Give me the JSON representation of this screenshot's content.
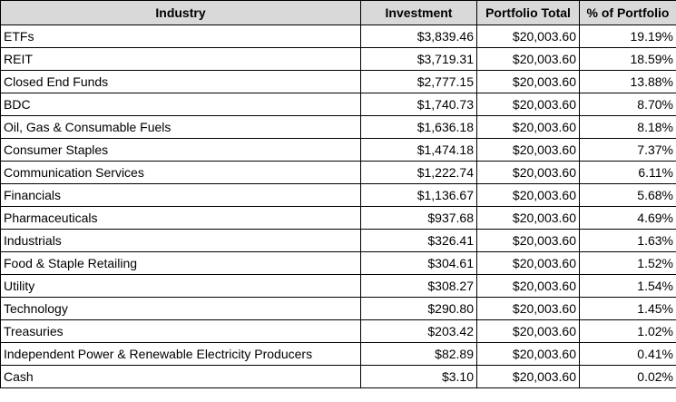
{
  "table": {
    "header": [
      "Industry",
      "Investment",
      "Portfolio Total",
      "% of Portfolio"
    ],
    "rows": [
      [
        "ETFs",
        "$3,839.46",
        "$20,003.60",
        "19.19%"
      ],
      [
        "REIT",
        "$3,719.31",
        "$20,003.60",
        "18.59%"
      ],
      [
        "Closed End Funds",
        "$2,777.15",
        "$20,003.60",
        "13.88%"
      ],
      [
        "BDC",
        "$1,740.73",
        "$20,003.60",
        "8.70%"
      ],
      [
        "Oil, Gas & Consumable Fuels",
        "$1,636.18",
        "$20,003.60",
        "8.18%"
      ],
      [
        "Consumer Staples",
        "$1,474.18",
        "$20,003.60",
        "7.37%"
      ],
      [
        "Communication Services",
        "$1,222.74",
        "$20,003.60",
        "6.11%"
      ],
      [
        "Financials",
        "$1,136.67",
        "$20,003.60",
        "5.68%"
      ],
      [
        "Pharmaceuticals",
        "$937.68",
        "$20,003.60",
        "4.69%"
      ],
      [
        "Industrials",
        "$326.41",
        "$20,003.60",
        "1.63%"
      ],
      [
        "Food & Staple Retailing",
        "$304.61",
        "$20,003.60",
        "1.52%"
      ],
      [
        "Utility",
        "$308.27",
        "$20,003.60",
        "1.54%"
      ],
      [
        "Technology",
        "$290.80",
        "$20,003.60",
        "1.45%"
      ],
      [
        "Treasuries",
        "$203.42",
        "$20,003.60",
        "1.02%"
      ],
      [
        "Independent Power & Renewable Electricity Producers",
        "$82.89",
        "$20,003.60",
        "0.41%"
      ],
      [
        "Cash",
        "$3.10",
        "$20,003.60",
        "0.02%"
      ]
    ]
  }
}
